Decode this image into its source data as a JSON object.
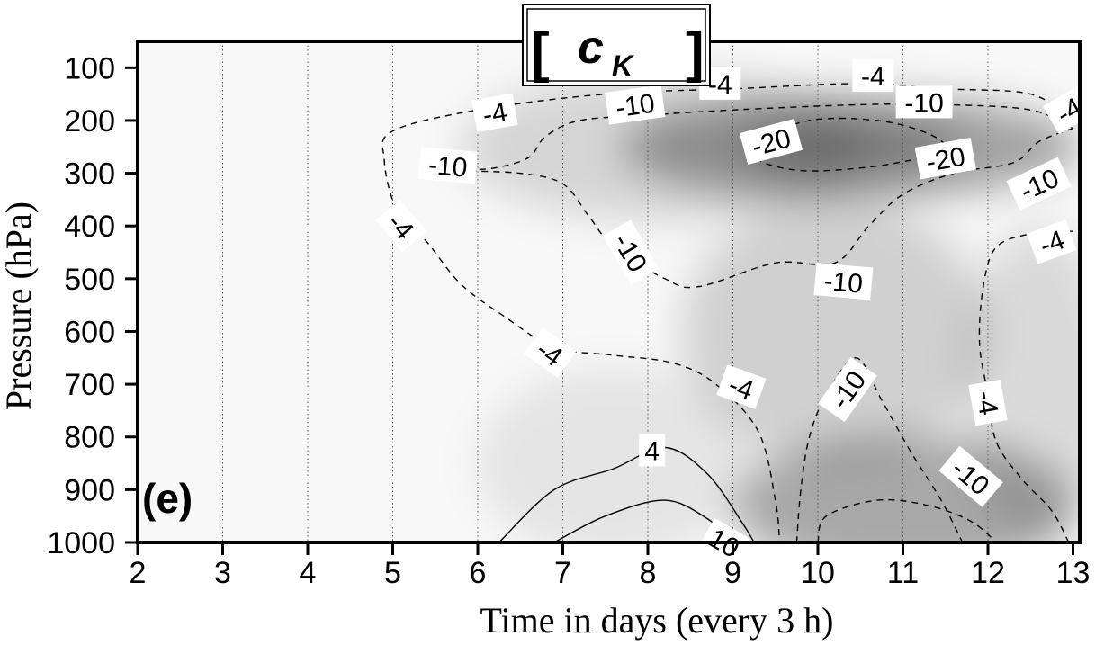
{
  "chart_data": {
    "type": "contour",
    "title": {
      "open_bracket": "[",
      "symbol": "c",
      "subscript": "K",
      "close_bracket": "]"
    },
    "panel_label": "(e)",
    "xlabel": "Time in days (every 3 h)",
    "ylabel": "Pressure (hPa)",
    "xlim": [
      2,
      13
    ],
    "ylim": [
      1000,
      50
    ],
    "y_inverted": true,
    "x_ticks": [
      "2",
      "3",
      "4",
      "5",
      "6",
      "7",
      "8",
      "9",
      "10",
      "11",
      "12",
      "13"
    ],
    "y_ticks": [
      "100",
      "200",
      "300",
      "400",
      "500",
      "600",
      "700",
      "800",
      "900",
      "1000"
    ],
    "grid": "vertical dotted lines at each day",
    "shading": "grayscale, darker = more negative",
    "contours": [
      {
        "level": -4,
        "style": "dashed",
        "points": [
          [
            13.0,
            200
          ],
          [
            12.5,
            150
          ],
          [
            11.5,
            140
          ],
          [
            10.5,
            130
          ],
          [
            9.0,
            140
          ],
          [
            7.5,
            150
          ],
          [
            6.0,
            180
          ],
          [
            5.0,
            220
          ],
          [
            4.9,
            275
          ],
          [
            5.05,
            370
          ],
          [
            5.4,
            430
          ],
          [
            5.8,
            510
          ],
          [
            6.3,
            570
          ],
          [
            6.9,
            630
          ],
          [
            7.6,
            645
          ],
          [
            8.3,
            660
          ],
          [
            8.8,
            700
          ],
          [
            9.3,
            790
          ],
          [
            9.5,
            920
          ],
          [
            9.55,
            1000
          ]
        ]
      },
      {
        "level": -4,
        "style": "dashed",
        "points": [
          [
            9.75,
            1000
          ],
          [
            9.8,
            900
          ],
          [
            9.9,
            800
          ],
          [
            10.1,
            720
          ],
          [
            10.45,
            650
          ],
          [
            10.75,
            730
          ],
          [
            11.1,
            830
          ],
          [
            11.45,
            920
          ],
          [
            11.7,
            1000
          ]
        ]
      },
      {
        "level": -4,
        "style": "dashed",
        "points": [
          [
            13.0,
            410
          ],
          [
            12.5,
            415
          ],
          [
            12.1,
            440
          ],
          [
            11.95,
            510
          ],
          [
            11.9,
            620
          ],
          [
            12.0,
            720
          ],
          [
            12.1,
            810
          ],
          [
            12.4,
            880
          ],
          [
            12.75,
            940
          ],
          [
            12.95,
            1000
          ]
        ]
      },
      {
        "level": -10,
        "style": "dashed",
        "points": [
          [
            13.0,
            215
          ],
          [
            12.5,
            180
          ],
          [
            11.5,
            170
          ],
          [
            10.5,
            170
          ],
          [
            9.0,
            180
          ],
          [
            8.0,
            190
          ],
          [
            7.2,
            200
          ],
          [
            6.8,
            230
          ],
          [
            6.6,
            270
          ],
          [
            6.2,
            290
          ],
          [
            5.8,
            295
          ],
          [
            6.5,
            300
          ],
          [
            7.0,
            320
          ],
          [
            7.3,
            380
          ],
          [
            7.6,
            440
          ],
          [
            8.2,
            500
          ],
          [
            8.6,
            515
          ],
          [
            9.5,
            470
          ],
          [
            10.2,
            470
          ],
          [
            10.6,
            400
          ],
          [
            11.0,
            340
          ],
          [
            11.6,
            300
          ],
          [
            12.3,
            280
          ],
          [
            12.6,
            240
          ],
          [
            13.0,
            215
          ]
        ]
      },
      {
        "level": -10,
        "style": "dashed",
        "points": [
          [
            10.0,
            1000
          ],
          [
            10.1,
            950
          ],
          [
            10.7,
            920
          ],
          [
            11.3,
            930
          ],
          [
            11.8,
            960
          ],
          [
            12.1,
            1000
          ]
        ]
      },
      {
        "level": -20,
        "style": "dashed",
        "points": [
          [
            9.2,
            240
          ],
          [
            9.9,
            200
          ],
          [
            10.7,
            200
          ],
          [
            11.3,
            225
          ],
          [
            11.5,
            255
          ],
          [
            11.1,
            275
          ],
          [
            10.5,
            290
          ],
          [
            9.8,
            295
          ],
          [
            9.3,
            275
          ],
          [
            9.2,
            240
          ]
        ]
      },
      {
        "level": 4,
        "style": "solid",
        "points": [
          [
            6.25,
            1000
          ],
          [
            6.9,
            900
          ],
          [
            7.6,
            860
          ],
          [
            8.2,
            820
          ],
          [
            8.7,
            870
          ],
          [
            9.1,
            960
          ],
          [
            9.25,
            1000
          ]
        ]
      },
      {
        "level": 10,
        "style": "solid",
        "points": [
          [
            6.9,
            1000
          ],
          [
            7.5,
            950
          ],
          [
            8.2,
            920
          ],
          [
            8.7,
            955
          ],
          [
            9.0,
            1000
          ]
        ]
      }
    ],
    "contour_labels": [
      {
        "text": "-4",
        "x": 6.2,
        "y": 185,
        "rot": -10
      },
      {
        "text": "-10",
        "x": 7.85,
        "y": 170,
        "rot": -8
      },
      {
        "text": "-4",
        "x": 8.85,
        "y": 130,
        "rot": 0
      },
      {
        "text": "-4",
        "x": 10.65,
        "y": 115,
        "rot": 0
      },
      {
        "text": "-10",
        "x": 11.25,
        "y": 165,
        "rot": 0
      },
      {
        "text": "-4",
        "x": 12.95,
        "y": 180,
        "rot": -30
      },
      {
        "text": "-20",
        "x": 9.45,
        "y": 240,
        "rot": -15
      },
      {
        "text": "-20",
        "x": 11.5,
        "y": 272,
        "rot": -10
      },
      {
        "text": "-10",
        "x": 5.65,
        "y": 285,
        "rot": 5
      },
      {
        "text": "-10",
        "x": 12.6,
        "y": 320,
        "rot": -25
      },
      {
        "text": "-4",
        "x": 5.1,
        "y": 400,
        "rot": 50
      },
      {
        "text": "-10",
        "x": 7.8,
        "y": 450,
        "rot": 60
      },
      {
        "text": "-10",
        "x": 10.3,
        "y": 505,
        "rot": 5
      },
      {
        "text": "-4",
        "x": 12.75,
        "y": 430,
        "rot": -20
      },
      {
        "text": "-4",
        "x": 6.85,
        "y": 640,
        "rot": 35
      },
      {
        "text": "-4",
        "x": 9.1,
        "y": 705,
        "rot": 20
      },
      {
        "text": "-10",
        "x": 10.35,
        "y": 710,
        "rot": -55
      },
      {
        "text": "-4",
        "x": 12.0,
        "y": 735,
        "rot": 80
      },
      {
        "text": "-10",
        "x": 11.8,
        "y": 875,
        "rot": 40
      },
      {
        "text": "4",
        "x": 8.05,
        "y": 825,
        "rot": 0
      },
      {
        "text": "10",
        "x": 8.9,
        "y": 1000,
        "rot": 30
      }
    ],
    "shading_blobs": [
      {
        "x": 10.4,
        "y": 250,
        "rx": 2.7,
        "ry": 100,
        "alpha": 0.34
      },
      {
        "x": 10.4,
        "y": 250,
        "rx": 1.3,
        "ry": 55,
        "alpha": 0.24
      },
      {
        "x": 8.2,
        "y": 250,
        "rx": 2.4,
        "ry": 140,
        "alpha": 0.14
      },
      {
        "x": 10.2,
        "y": 600,
        "rx": 1.8,
        "ry": 250,
        "alpha": 0.16
      },
      {
        "x": 11.0,
        "y": 930,
        "rx": 2.0,
        "ry": 130,
        "alpha": 0.32
      },
      {
        "x": 12.6,
        "y": 700,
        "rx": 0.9,
        "ry": 300,
        "alpha": 0.12
      },
      {
        "x": 7.6,
        "y": 850,
        "rx": 1.6,
        "ry": 180,
        "alpha": 0.08
      }
    ]
  }
}
